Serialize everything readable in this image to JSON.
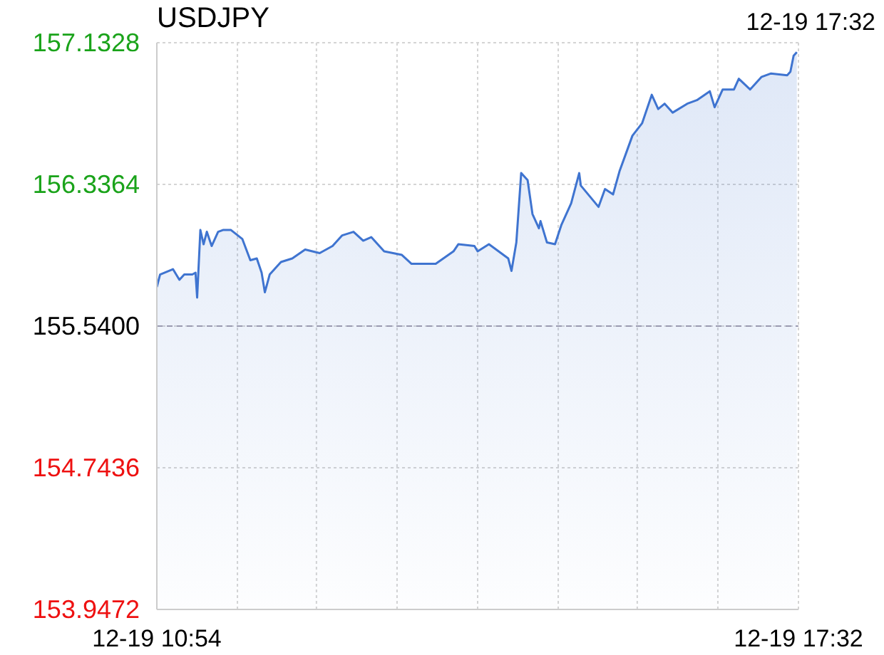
{
  "chart_data": {
    "type": "area",
    "title": "USDJPY",
    "subtitle": "12-19 17:32",
    "x": [
      "--12-19T10:54",
      "--12-19T10:56",
      "--12-19T11:04",
      "--12-19T11:08",
      "--12-19T11:11",
      "--12-19T11:16",
      "--12-19T11:18",
      "--12-19T11:19",
      "--12-19T11:21",
      "--12-19T11:23",
      "--12-19T11:25",
      "--12-19T11:28",
      "--12-19T11:32",
      "--12-19T11:35",
      "--12-19T11:40",
      "--12-19T11:47",
      "--12-19T11:52",
      "--12-19T11:56",
      "--12-19T11:59",
      "--12-19T12:01",
      "--12-19T12:04",
      "--12-19T12:11",
      "--12-19T12:18",
      "--12-19T12:26",
      "--12-19T12:35",
      "--12-19T12:43",
      "--12-19T12:49",
      "--12-19T12:56",
      "--12-19T13:02",
      "--12-19T13:07",
      "--12-19T13:15",
      "--12-19T13:26",
      "--12-19T13:32",
      "--12-19T13:47",
      "--12-19T13:58",
      "--12-19T14:01",
      "--12-19T14:11",
      "--12-19T14:13",
      "--12-19T14:20",
      "--12-19T14:32",
      "--12-19T14:34",
      "--12-19T14:37",
      "--12-19T14:40",
      "--12-19T14:44",
      "--12-19T14:47",
      "--12-19T14:51",
      "--12-19T14:52",
      "--12-19T14:56",
      "--12-19T15:01",
      "--12-19T15:05",
      "--12-19T15:11",
      "--12-19T15:16",
      "--12-19T15:17",
      "--12-19T15:28",
      "--12-19T15:32",
      "--12-19T15:37",
      "--12-19T15:41",
      "--12-19T15:45",
      "--12-19T15:49",
      "--12-19T15:55",
      "--12-19T16:01",
      "--12-19T16:05",
      "--12-19T16:09",
      "--12-19T16:14",
      "--12-19T16:23",
      "--12-19T16:29",
      "--12-19T16:37",
      "--12-19T16:40",
      "--12-19T16:45",
      "--12-19T16:52",
      "--12-19T16:55",
      "--12-19T17:02",
      "--12-19T17:09",
      "--12-19T17:15",
      "--12-19T17:25",
      "--12-19T17:27",
      "--12-19T17:29",
      "--12-19T17:31"
    ],
    "series": [
      {
        "color": "#3f74d0",
        "values": [
          155.76,
          155.83,
          155.86,
          155.8,
          155.83,
          155.83,
          155.84,
          155.7,
          156.08,
          156.0,
          156.07,
          155.99,
          156.07,
          156.08,
          156.08,
          156.03,
          155.91,
          155.92,
          155.84,
          155.73,
          155.83,
          155.9,
          155.92,
          155.97,
          155.95,
          155.99,
          156.05,
          156.07,
          156.02,
          156.04,
          155.96,
          155.94,
          155.89,
          155.89,
          155.96,
          156.0,
          155.99,
          155.96,
          156.0,
          155.92,
          155.85,
          156.01,
          156.4,
          156.36,
          156.17,
          156.09,
          156.13,
          156.01,
          156.0,
          156.11,
          156.23,
          156.4,
          156.33,
          156.21,
          156.31,
          156.28,
          156.41,
          156.51,
          156.61,
          156.68,
          156.84,
          156.76,
          156.79,
          156.74,
          156.79,
          156.81,
          156.86,
          156.77,
          156.87,
          156.87,
          156.93,
          156.87,
          156.94,
          156.96,
          156.95,
          156.97,
          157.06,
          157.08
        ]
      }
    ],
    "xlim": [
      "--12-19T10:54",
      "--12-19T17:32"
    ],
    "xticks": [
      {
        "value": "--12-19T10:54",
        "label": "12-19 10:54"
      },
      {
        "value": "--12-19T11:44",
        "label": null
      },
      {
        "value": "--12-19T12:33",
        "label": null
      },
      {
        "value": "--12-19T13:23",
        "label": null
      },
      {
        "value": "--12-19T14:13",
        "label": null
      },
      {
        "value": "--12-19T15:03",
        "label": null
      },
      {
        "value": "--12-19T15:52",
        "label": null
      },
      {
        "value": "--12-19T16:42",
        "label": null
      },
      {
        "value": "--12-19T17:32",
        "label": "12-19 17:32"
      }
    ],
    "ylim": [
      153.9472,
      157.1328
    ],
    "yticks": [
      153.9472,
      154.7436,
      {
        "value": 155.54,
        "label": "155.5400"
      },
      156.3364,
      157.1328
    ],
    "ref_lines": [
      {
        "axis": "y",
        "value": 155.54,
        "color": "#9a9ab0",
        "line_style": "dashed"
      }
    ],
    "grid": true,
    "marker": "none",
    "line_style": "solid"
  }
}
